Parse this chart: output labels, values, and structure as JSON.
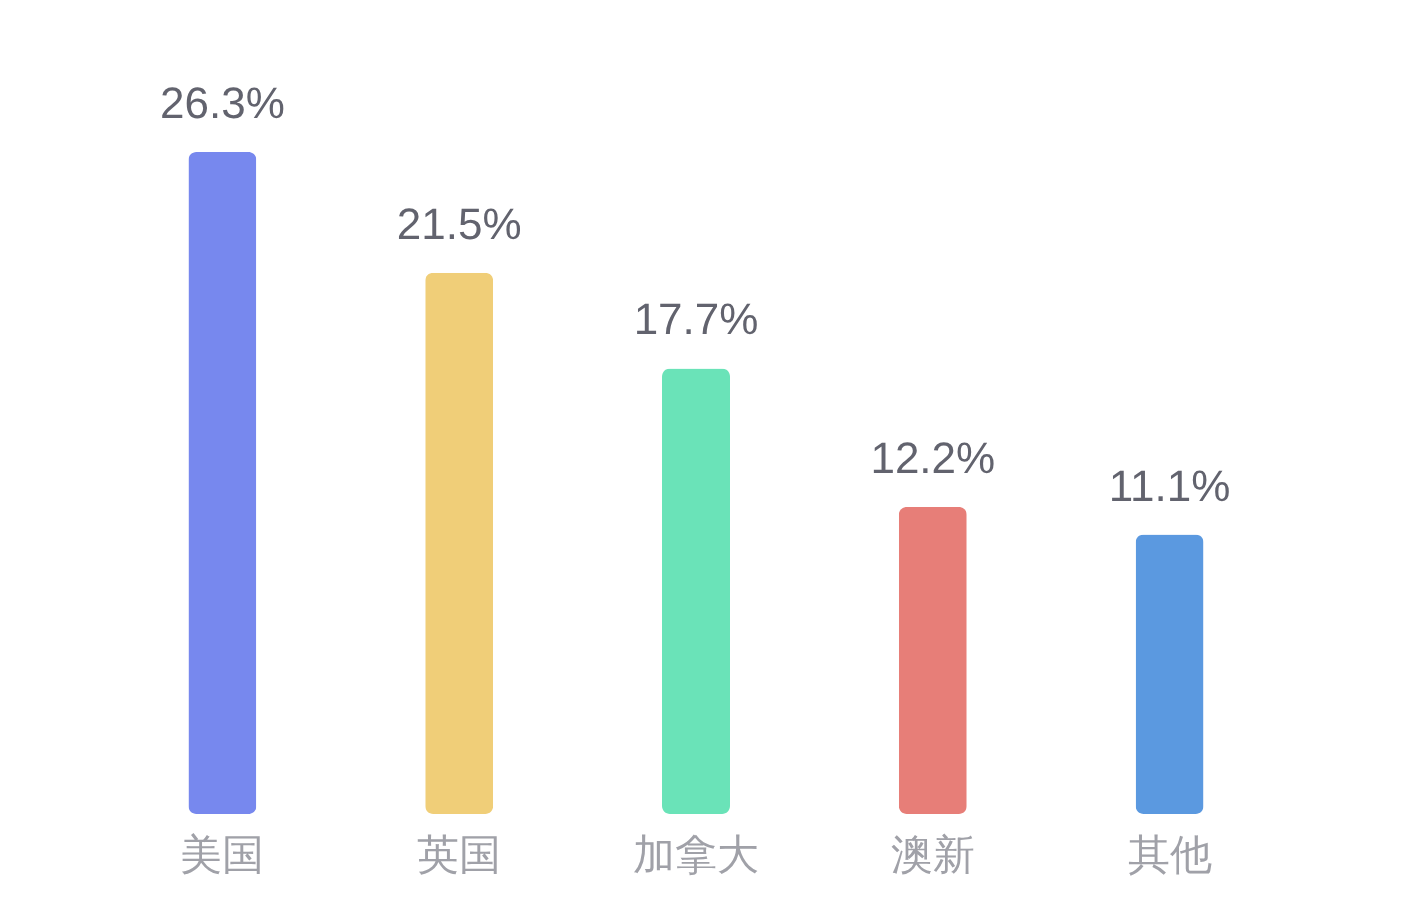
{
  "chart_data": {
    "type": "bar",
    "categories": [
      "美国",
      "英国",
      "加拿大",
      "澳新",
      "其他"
    ],
    "values": [
      26.3,
      21.5,
      17.7,
      12.2,
      11.1
    ],
    "colors": [
      "#7788ee",
      "#f0ce78",
      "#6ae3b8",
      "#e77e78",
      "#5b99e0"
    ],
    "value_labels": [
      "26.3%",
      "21.5%",
      "17.7%",
      "12.2%",
      "11.1%"
    ],
    "tick_labels": "x"
  }
}
